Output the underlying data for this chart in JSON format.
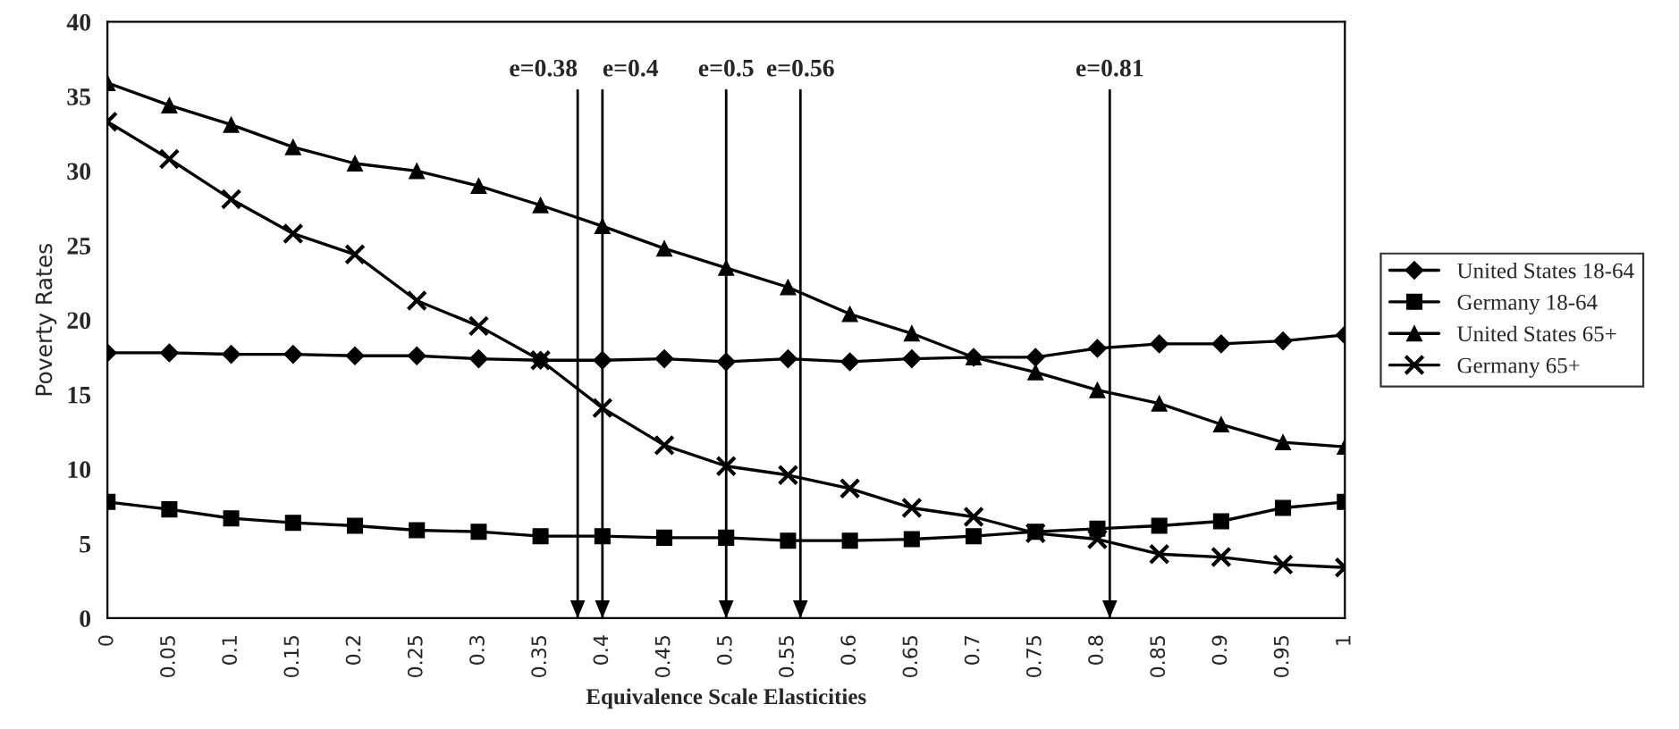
{
  "chart_data": {
    "type": "line",
    "xlabel": "Equivalence Scale Elasticities",
    "ylabel": "Poverty Rates",
    "x": [
      0,
      0.05,
      0.1,
      0.15,
      0.2,
      0.25,
      0.3,
      0.35,
      0.4,
      0.45,
      0.5,
      0.55,
      0.6,
      0.65,
      0.7,
      0.75,
      0.8,
      0.85,
      0.9,
      0.95,
      1
    ],
    "series": [
      {
        "name": "United States 18-64",
        "color": "#000000",
        "marker": "diamond",
        "values": [
          17.8,
          17.8,
          17.7,
          17.7,
          17.6,
          17.6,
          17.4,
          17.3,
          17.3,
          17.4,
          17.2,
          17.4,
          17.2,
          17.4,
          17.5,
          17.5,
          18.1,
          18.4,
          18.4,
          18.6,
          19.0
        ]
      },
      {
        "name": "Germany 18-64",
        "color": "#000000",
        "marker": "square",
        "values": [
          7.8,
          7.3,
          6.7,
          6.4,
          6.2,
          5.9,
          5.8,
          5.5,
          5.5,
          5.4,
          5.4,
          5.2,
          5.2,
          5.3,
          5.5,
          5.8,
          6.0,
          6.2,
          6.5,
          7.4,
          7.8
        ]
      },
      {
        "name": "United States 65+",
        "color": "#000000",
        "marker": "triangle",
        "values": [
          35.9,
          34.4,
          33.1,
          31.6,
          30.5,
          30.0,
          29.0,
          27.7,
          26.3,
          24.8,
          23.5,
          22.2,
          20.4,
          19.1,
          17.5,
          16.5,
          15.3,
          14.4,
          13.0,
          11.8,
          11.5
        ]
      },
      {
        "name": "Germany 65+",
        "color": "#000000",
        "marker": "cross",
        "values": [
          33.3,
          30.8,
          28.1,
          25.8,
          24.4,
          21.3,
          19.6,
          17.3,
          14.1,
          11.6,
          10.2,
          9.6,
          8.7,
          7.4,
          6.8,
          5.7,
          5.3,
          4.3,
          4.1,
          3.6,
          3.4
        ]
      }
    ],
    "xlim": [
      0,
      1
    ],
    "xticks": [
      0,
      0.05,
      0.1,
      0.15,
      0.2,
      0.25,
      0.3,
      0.35,
      0.4,
      0.45,
      0.5,
      0.55,
      0.6,
      0.65,
      0.7,
      0.75,
      0.8,
      0.85,
      0.9,
      0.95,
      1
    ],
    "ylim": [
      0,
      40
    ],
    "yticks": [
      0,
      5,
      10,
      15,
      20,
      25,
      30,
      35,
      40
    ],
    "ref_lines": [
      {
        "axis": "x",
        "value": 0.38,
        "label": "e=0.38"
      },
      {
        "axis": "x",
        "value": 0.4,
        "label": "e=0.4"
      },
      {
        "axis": "x",
        "value": 0.5,
        "label": "e=0.5"
      },
      {
        "axis": "x",
        "value": 0.56,
        "label": "e=0.56"
      },
      {
        "axis": "x",
        "value": 0.81,
        "label": "e=0.81"
      }
    ],
    "grid": false,
    "legend": "right",
    "line_style": "solid"
  }
}
